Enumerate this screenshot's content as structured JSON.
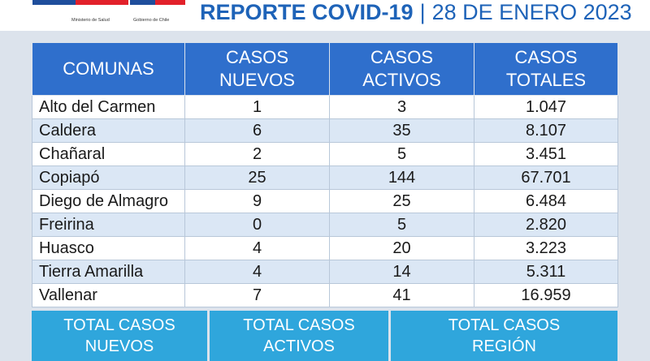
{
  "header": {
    "logo_left_text": "Ministerio de Salud",
    "logo_right_text": "Gobierno de Chile",
    "title": "REPORTE COVID-19",
    "separator": "|",
    "date": "28 DE ENERO 2023"
  },
  "table": {
    "columns": [
      {
        "line1": "COMUNAS",
        "line2": ""
      },
      {
        "line1": "CASOS",
        "line2": "NUEVOS"
      },
      {
        "line1": "CASOS",
        "line2": "ACTIVOS"
      },
      {
        "line1": "CASOS",
        "line2": "TOTALES"
      }
    ],
    "rows": [
      {
        "comuna": "Alto del Carmen",
        "nuevos": "1",
        "activos": "3",
        "totales": "1.047"
      },
      {
        "comuna": "Caldera",
        "nuevos": "6",
        "activos": "35",
        "totales": "8.107"
      },
      {
        "comuna": "Chañaral",
        "nuevos": "2",
        "activos": "5",
        "totales": "3.451"
      },
      {
        "comuna": "Copiapó",
        "nuevos": "25",
        "activos": "144",
        "totales": "67.701"
      },
      {
        "comuna": "Diego de Almagro",
        "nuevos": "9",
        "activos": "25",
        "totales": "6.484"
      },
      {
        "comuna": "Freirina",
        "nuevos": "0",
        "activos": "5",
        "totales": "2.820"
      },
      {
        "comuna": "Huasco",
        "nuevos": "4",
        "activos": "20",
        "totales": "3.223"
      },
      {
        "comuna": "Tierra Amarilla",
        "nuevos": "4",
        "activos": "14",
        "totales": "5.311"
      },
      {
        "comuna": "Vallenar",
        "nuevos": "7",
        "activos": "41",
        "totales": "16.959"
      }
    ]
  },
  "totals": [
    {
      "line1": "TOTAL CASOS",
      "line2": "NUEVOS"
    },
    {
      "line1": "TOTAL CASOS",
      "line2": "ACTIVOS"
    },
    {
      "line1": "TOTAL CASOS",
      "line2": "REGIÓN"
    }
  ],
  "colors": {
    "header_blue": "#2f6fcc",
    "title_blue": "#1e63b8",
    "totals_blue": "#2fa6dc",
    "row_alt": "#dbe7f5"
  }
}
